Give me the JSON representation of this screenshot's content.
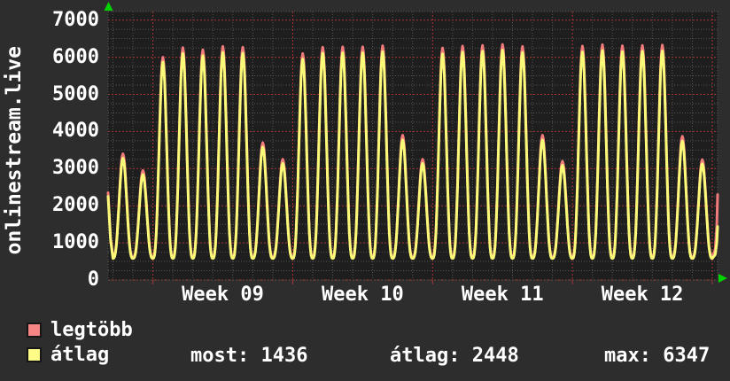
{
  "colors": {
    "background": "#2d2d2d",
    "plot_background": "#1e1e1e",
    "grid_minor": "#545454",
    "grid_major": "#a83434",
    "text": "#ffffff",
    "arrow": "#00d400",
    "series_max": "#f27c7c",
    "series_avg": "#fafa78"
  },
  "legend": {
    "items": [
      {
        "label": "legtöbb",
        "color": "#f68686",
        "series": "max"
      },
      {
        "label": "átlag",
        "color": "#fcfc86",
        "series": "avg"
      }
    ]
  },
  "stats_row": {
    "most": "most: 1436",
    "atlag": "átlag: 2448",
    "max": "max: 6347"
  },
  "chart_data": {
    "type": "line",
    "title_vertical": "onlinestream.live",
    "xlabel": "",
    "ylabel": "",
    "x_week_labels": [
      "Week 09",
      "Week 10",
      "Week 11",
      "Week 12"
    ],
    "y_ticks": [
      0,
      1000,
      2000,
      3000,
      4000,
      5000,
      6000,
      7000
    ],
    "ylim": [
      0,
      7230
    ],
    "grid": {
      "minor_step": 250,
      "major_step": 1000,
      "days_per_week": 7,
      "grid_on": true
    },
    "legend_position": "bottom-left",
    "stats": {
      "most_current": 1436,
      "atlag_average": 2448,
      "max_peak": 6347
    },
    "days_shown": 30,
    "series": [
      {
        "name": "legtöbb",
        "role": "daily maximum viewers",
        "color": "#f27c7c",
        "valley": 620,
        "edge_start": 2350,
        "edge_end": 2300,
        "daily_peaks": [
          3400,
          2950,
          6000,
          6260,
          6200,
          6290,
          6270,
          3700,
          3250,
          6100,
          6270,
          6280,
          6280,
          6310,
          3900,
          3250,
          6250,
          6300,
          6320,
          6347,
          6290,
          3900,
          3200,
          6300,
          6340,
          6310,
          6320,
          6330,
          3870,
          3240
        ]
      },
      {
        "name": "átlag",
        "role": "daily average viewers",
        "color": "#fafa78",
        "valley": 580,
        "edge_start": 2250,
        "edge_end": 1436,
        "daily_peaks": [
          3280,
          2840,
          5870,
          6100,
          6040,
          6130,
          6110,
          3580,
          3140,
          5950,
          6110,
          6120,
          6120,
          6150,
          3770,
          3140,
          6090,
          6140,
          6160,
          6190,
          6130,
          3770,
          3090,
          6140,
          6180,
          6150,
          6160,
          6170,
          3740,
          3130
        ]
      }
    ]
  }
}
